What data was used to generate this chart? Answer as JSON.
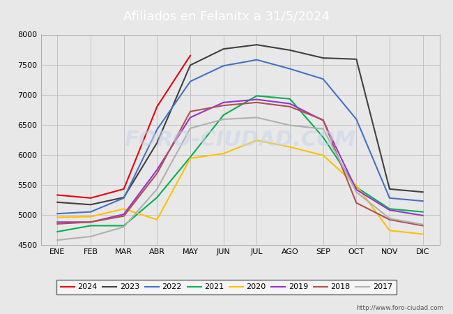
{
  "title": "Afiliados en Felanitx a 31/5/2024",
  "title_color": "#ffffff",
  "title_bg_color": "#4d7ebf",
  "months": [
    "ENE",
    "FEB",
    "MAR",
    "ABR",
    "MAY",
    "JUN",
    "JUL",
    "AGO",
    "SEP",
    "OCT",
    "NOV",
    "DIC"
  ],
  "ylim": [
    4500,
    8000
  ],
  "yticks": [
    4500,
    5000,
    5500,
    6000,
    6500,
    7000,
    7500,
    8000
  ],
  "series": [
    {
      "label": "2024",
      "color": "#e8000b",
      "linewidth": 1.5,
      "data": [
        5330,
        5280,
        5430,
        6800,
        7650,
        null,
        null,
        null,
        null,
        null,
        null,
        null
      ]
    },
    {
      "label": "2023",
      "color": "#404040",
      "linewidth": 1.5,
      "data": [
        5210,
        5170,
        5290,
        6200,
        7490,
        7760,
        7830,
        7740,
        7610,
        7590,
        5430,
        5380
      ]
    },
    {
      "label": "2022",
      "color": "#4472c4",
      "linewidth": 1.5,
      "data": [
        5020,
        5050,
        5280,
        6420,
        7220,
        7480,
        7580,
        7430,
        7260,
        6590,
        5280,
        5230
      ]
    },
    {
      "label": "2021",
      "color": "#00b050",
      "linewidth": 1.5,
      "data": [
        4720,
        4820,
        4820,
        5290,
        5960,
        6660,
        6980,
        6930,
        6290,
        5460,
        5100,
        5050
      ]
    },
    {
      "label": "2020",
      "color": "#ffc000",
      "linewidth": 1.5,
      "data": [
        4960,
        4970,
        5100,
        4920,
        5940,
        6020,
        6240,
        6130,
        5990,
        5490,
        4740,
        4680
      ]
    },
    {
      "label": "2019",
      "color": "#9932cc",
      "linewidth": 1.5,
      "data": [
        4880,
        4880,
        5010,
        5750,
        6620,
        6870,
        6920,
        6850,
        6570,
        5420,
        5080,
        4990
      ]
    },
    {
      "label": "2018",
      "color": "#b05050",
      "linewidth": 1.5,
      "data": [
        4850,
        4880,
        4980,
        5690,
        6720,
        6820,
        6870,
        6800,
        6580,
        5200,
        4920,
        4820
      ]
    },
    {
      "label": "2017",
      "color": "#b0b0b0",
      "linewidth": 1.5,
      "data": [
        4580,
        4640,
        4800,
        5430,
        6440,
        6590,
        6620,
        6490,
        6430,
        5380,
        4940,
        4840
      ]
    }
  ],
  "background_color": "#e8e8e8",
  "plot_bg_color": "#e8e8e8",
  "grid_color": "#bbbbbb",
  "watermark_plot": "FORO-CIUDAD.COM",
  "watermark_url": "http://www.foro-ciudad.com",
  "legend_ncol": 8
}
